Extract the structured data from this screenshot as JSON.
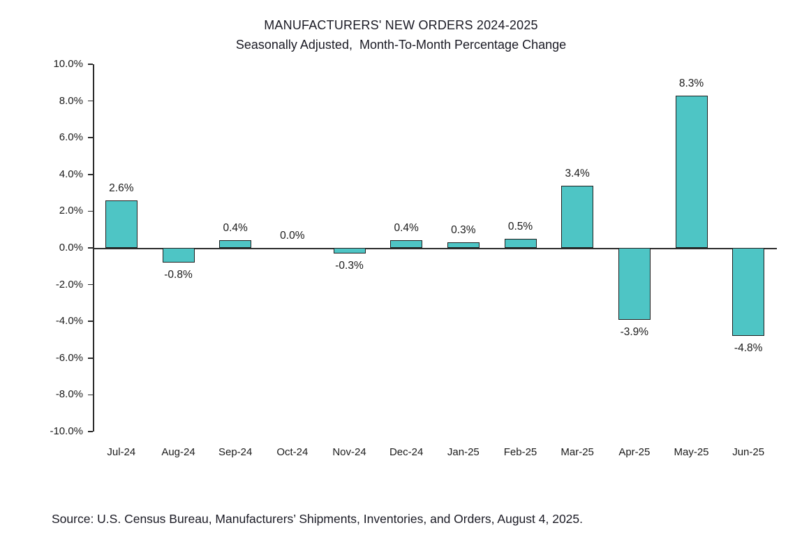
{
  "chart_data": {
    "type": "bar",
    "title": "MANUFACTURERS' NEW ORDERS 2024-2025",
    "subtitle": "Seasonally Adjusted,  Month-To-Month Percentage Change",
    "categories": [
      "Jul-24",
      "Aug-24",
      "Sep-24",
      "Oct-24",
      "Nov-24",
      "Dec-24",
      "Jan-25",
      "Feb-25",
      "Mar-25",
      "Apr-25",
      "May-25",
      "Jun-25"
    ],
    "values": [
      2.6,
      -0.8,
      0.4,
      0.0,
      -0.3,
      0.4,
      0.3,
      0.5,
      3.4,
      -3.9,
      8.3,
      -4.8
    ],
    "value_labels": [
      "2.6%",
      "-0.8%",
      "0.4%",
      "0.0%",
      "-0.3%",
      "0.4%",
      "0.3%",
      "0.5%",
      "3.4%",
      "-3.9%",
      "8.3%",
      "-4.8%"
    ],
    "ylim": [
      -10,
      10
    ],
    "yticks": [
      10,
      8,
      6,
      4,
      2,
      0,
      -2,
      -4,
      -6,
      -8,
      -10
    ],
    "ytick_labels": [
      "10.0%",
      "8.0%",
      "6.0%",
      "4.0%",
      "2.0%",
      "0.0%",
      "-2.0%",
      "-4.0%",
      "-6.0%",
      "-8.0%",
      "-10.0%"
    ],
    "xlabel": "",
    "ylabel": "",
    "grid": false,
    "legend": false,
    "bar_color": "#4ec5c5",
    "bar_border_color": "#1f1f1f",
    "source": "Source: U.S. Census Bureau, Manufacturers’ Shipments, Inventories, and Orders, August 4, 2025."
  }
}
